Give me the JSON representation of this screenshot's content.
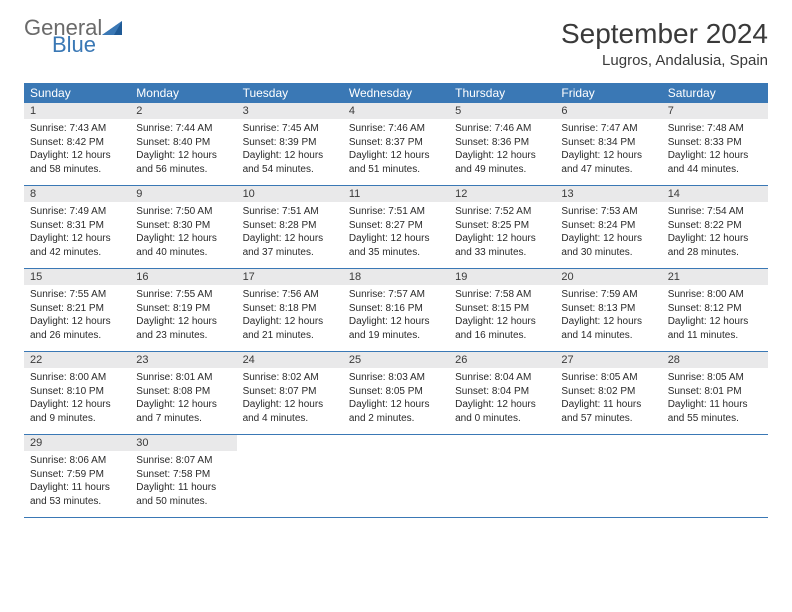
{
  "logo": {
    "general": "General",
    "blue": "Blue"
  },
  "title": "September 2024",
  "location": "Lugros, Andalusia, Spain",
  "colors": {
    "header_bg": "#3a78b5",
    "header_text": "#ffffff",
    "day_number_bg": "#e9e9ea",
    "text": "#3a3a3a",
    "border": "#3a78b5"
  },
  "typography": {
    "title_fontsize": 28,
    "location_fontsize": 15,
    "day_header_fontsize": 12,
    "day_number_fontsize": 11,
    "content_fontsize": 10
  },
  "day_headers": [
    "Sunday",
    "Monday",
    "Tuesday",
    "Wednesday",
    "Thursday",
    "Friday",
    "Saturday"
  ],
  "weeks": [
    [
      {
        "n": "1",
        "sunrise": "7:43 AM",
        "sunset": "8:42 PM",
        "day_h": "12",
        "day_m": "58"
      },
      {
        "n": "2",
        "sunrise": "7:44 AM",
        "sunset": "8:40 PM",
        "day_h": "12",
        "day_m": "56"
      },
      {
        "n": "3",
        "sunrise": "7:45 AM",
        "sunset": "8:39 PM",
        "day_h": "12",
        "day_m": "54"
      },
      {
        "n": "4",
        "sunrise": "7:46 AM",
        "sunset": "8:37 PM",
        "day_h": "12",
        "day_m": "51"
      },
      {
        "n": "5",
        "sunrise": "7:46 AM",
        "sunset": "8:36 PM",
        "day_h": "12",
        "day_m": "49"
      },
      {
        "n": "6",
        "sunrise": "7:47 AM",
        "sunset": "8:34 PM",
        "day_h": "12",
        "day_m": "47"
      },
      {
        "n": "7",
        "sunrise": "7:48 AM",
        "sunset": "8:33 PM",
        "day_h": "12",
        "day_m": "44"
      }
    ],
    [
      {
        "n": "8",
        "sunrise": "7:49 AM",
        "sunset": "8:31 PM",
        "day_h": "12",
        "day_m": "42"
      },
      {
        "n": "9",
        "sunrise": "7:50 AM",
        "sunset": "8:30 PM",
        "day_h": "12",
        "day_m": "40"
      },
      {
        "n": "10",
        "sunrise": "7:51 AM",
        "sunset": "8:28 PM",
        "day_h": "12",
        "day_m": "37"
      },
      {
        "n": "11",
        "sunrise": "7:51 AM",
        "sunset": "8:27 PM",
        "day_h": "12",
        "day_m": "35"
      },
      {
        "n": "12",
        "sunrise": "7:52 AM",
        "sunset": "8:25 PM",
        "day_h": "12",
        "day_m": "33"
      },
      {
        "n": "13",
        "sunrise": "7:53 AM",
        "sunset": "8:24 PM",
        "day_h": "12",
        "day_m": "30"
      },
      {
        "n": "14",
        "sunrise": "7:54 AM",
        "sunset": "8:22 PM",
        "day_h": "12",
        "day_m": "28"
      }
    ],
    [
      {
        "n": "15",
        "sunrise": "7:55 AM",
        "sunset": "8:21 PM",
        "day_h": "12",
        "day_m": "26"
      },
      {
        "n": "16",
        "sunrise": "7:55 AM",
        "sunset": "8:19 PM",
        "day_h": "12",
        "day_m": "23"
      },
      {
        "n": "17",
        "sunrise": "7:56 AM",
        "sunset": "8:18 PM",
        "day_h": "12",
        "day_m": "21"
      },
      {
        "n": "18",
        "sunrise": "7:57 AM",
        "sunset": "8:16 PM",
        "day_h": "12",
        "day_m": "19"
      },
      {
        "n": "19",
        "sunrise": "7:58 AM",
        "sunset": "8:15 PM",
        "day_h": "12",
        "day_m": "16"
      },
      {
        "n": "20",
        "sunrise": "7:59 AM",
        "sunset": "8:13 PM",
        "day_h": "12",
        "day_m": "14"
      },
      {
        "n": "21",
        "sunrise": "8:00 AM",
        "sunset": "8:12 PM",
        "day_h": "12",
        "day_m": "11"
      }
    ],
    [
      {
        "n": "22",
        "sunrise": "8:00 AM",
        "sunset": "8:10 PM",
        "day_h": "12",
        "day_m": "9"
      },
      {
        "n": "23",
        "sunrise": "8:01 AM",
        "sunset": "8:08 PM",
        "day_h": "12",
        "day_m": "7"
      },
      {
        "n": "24",
        "sunrise": "8:02 AM",
        "sunset": "8:07 PM",
        "day_h": "12",
        "day_m": "4"
      },
      {
        "n": "25",
        "sunrise": "8:03 AM",
        "sunset": "8:05 PM",
        "day_h": "12",
        "day_m": "2"
      },
      {
        "n": "26",
        "sunrise": "8:04 AM",
        "sunset": "8:04 PM",
        "day_h": "12",
        "day_m": "0"
      },
      {
        "n": "27",
        "sunrise": "8:05 AM",
        "sunset": "8:02 PM",
        "day_h": "11",
        "day_m": "57"
      },
      {
        "n": "28",
        "sunrise": "8:05 AM",
        "sunset": "8:01 PM",
        "day_h": "11",
        "day_m": "55"
      }
    ],
    [
      {
        "n": "29",
        "sunrise": "8:06 AM",
        "sunset": "7:59 PM",
        "day_h": "11",
        "day_m": "53"
      },
      {
        "n": "30",
        "sunrise": "8:07 AM",
        "sunset": "7:58 PM",
        "day_h": "11",
        "day_m": "50"
      },
      null,
      null,
      null,
      null,
      null
    ]
  ]
}
